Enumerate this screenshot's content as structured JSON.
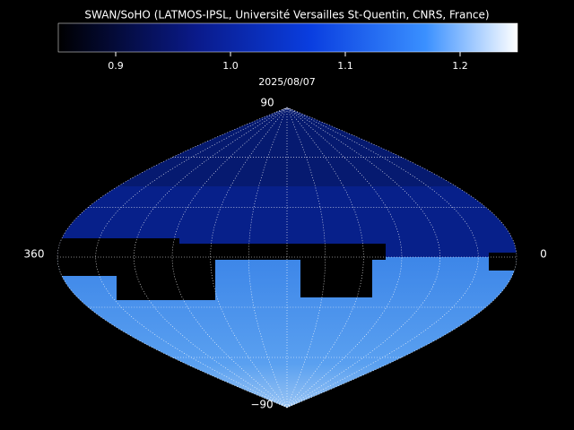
{
  "header": {
    "title": "SWAN/SoHO (LATMOS-IPSL, Université Versailles St-Quentin, CNRS, France)"
  },
  "colorbar": {
    "lim": [
      0.85,
      1.25
    ],
    "ticks": [
      0.9,
      {
        "value": 1,
        "label": "1.0"
      },
      1.1,
      1.2
    ]
  },
  "date": "2025/08/07",
  "map": {
    "top_label": "90",
    "bottom_label": "−90",
    "left_label": "360",
    "right_label": "0"
  }
}
